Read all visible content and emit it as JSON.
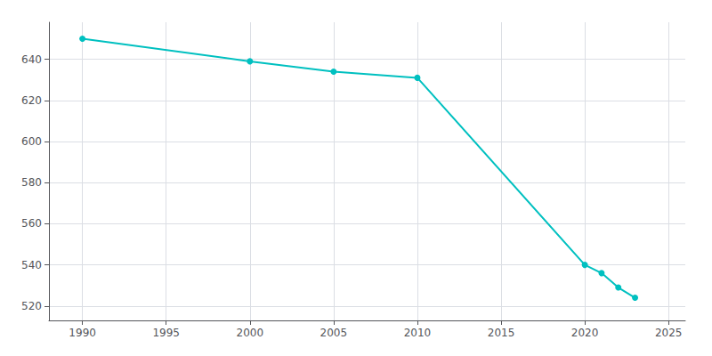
{
  "chart_data": {
    "type": "line",
    "x": [
      1990,
      2000,
      2005,
      2010,
      2020,
      2021,
      2022,
      2023
    ],
    "values": [
      650,
      639,
      634,
      631,
      540,
      536,
      529,
      524
    ],
    "color": "#00C0C0",
    "marker": "circle",
    "xlim": [
      1988,
      2026
    ],
    "xticks": [
      1990,
      1995,
      2000,
      2005,
      2010,
      2015,
      2020,
      2025
    ],
    "ylim": [
      513,
      658
    ],
    "yticks": [
      520,
      540,
      560,
      580,
      600,
      620,
      640
    ],
    "grid": true
  }
}
